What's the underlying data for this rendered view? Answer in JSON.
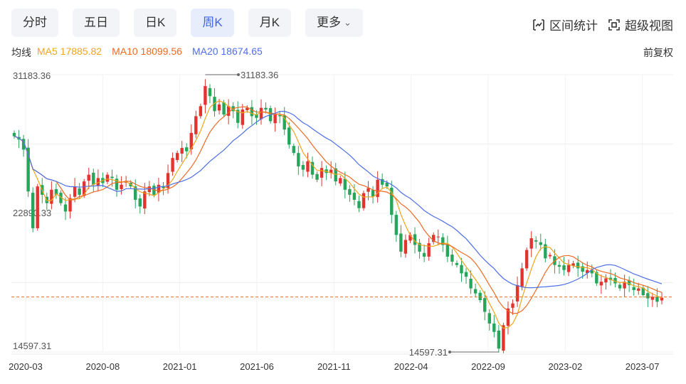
{
  "tabs": [
    {
      "label": "分时",
      "active": false
    },
    {
      "label": "五日",
      "active": false
    },
    {
      "label": "日K",
      "active": false
    },
    {
      "label": "周K",
      "active": true
    },
    {
      "label": "月K",
      "active": false
    },
    {
      "label": "更多",
      "active": false
    }
  ],
  "tools": {
    "range_stat": "区间统计",
    "super_view": "超级视图"
  },
  "ma": {
    "label": "均线",
    "ma5": "MA5 17885.82",
    "ma10": "MA10 18099.56",
    "ma20": "MA20 18674.65"
  },
  "adjust_label": "前复权",
  "colors": {
    "up": "#e2342f",
    "down": "#27a55a",
    "ma5": "#f0a51d",
    "ma10": "#f06a23",
    "ma20": "#4e6fe6",
    "accent": "#3c65e6"
  },
  "chart_data": {
    "type": "candlestick",
    "y_ticks": [
      "31183.36",
      "22890.33",
      "14597.31"
    ],
    "ylim": [
      14597.31,
      31183.36
    ],
    "x_ticks": [
      "2020-03",
      "2020-08",
      "2021-01",
      "2021-06",
      "2021-11",
      "2022-04",
      "2022-09",
      "2023-02",
      "2023-07"
    ],
    "max_annotation": {
      "label": "31183.36",
      "value": 31183.36,
      "date": "2021-02"
    },
    "min_annotation": {
      "label": "14597.31",
      "value": 14597.31,
      "date": "2022-10"
    },
    "last_close_line": 17885.82,
    "series_close": [
      27500,
      27300,
      26700,
      24200,
      22000,
      24500,
      24000,
      23500,
      24300,
      24000,
      23500,
      23000,
      23800,
      24500,
      24000,
      24800,
      25200,
      24600,
      25000,
      24700,
      25200,
      25000,
      24300,
      24600,
      24800,
      24500,
      23700,
      23300,
      24200,
      24500,
      24000,
      24600,
      24400,
      25300,
      26200,
      26500,
      26800,
      26600,
      27700,
      28700,
      29300,
      30500,
      29900,
      29000,
      29400,
      28800,
      29300,
      29000,
      28300,
      29100,
      29200,
      28700,
      28600,
      29200,
      29100,
      28400,
      28800,
      28700,
      27900,
      27000,
      26500,
      25700,
      25500,
      26000,
      25200,
      24900,
      25600,
      25300,
      25500,
      24800,
      25000,
      24300,
      24000,
      23700,
      23200,
      24100,
      24400,
      23900,
      24900,
      24600,
      24500,
      22800,
      21600,
      20600,
      21300,
      21600,
      21000,
      20600,
      20300,
      21100,
      21600,
      21500,
      21000,
      20300,
      20000,
      19800,
      19300,
      19100,
      18400,
      18100,
      17700,
      17000,
      16300,
      15800,
      14800,
      16200,
      17200,
      17500,
      18600,
      19600,
      20700,
      21400,
      21200,
      21000,
      20200,
      20400,
      19800,
      19700,
      19500,
      19800,
      19900,
      19600,
      19400,
      19500,
      19300,
      18700,
      18800,
      19000,
      18900,
      18700,
      18400,
      18800,
      18600,
      18300,
      18400,
      18000,
      17800,
      17900,
      17600,
      17850
    ],
    "ma5_last": 17885.82,
    "ma10_last": 18099.56,
    "ma20_last": 18674.65
  }
}
